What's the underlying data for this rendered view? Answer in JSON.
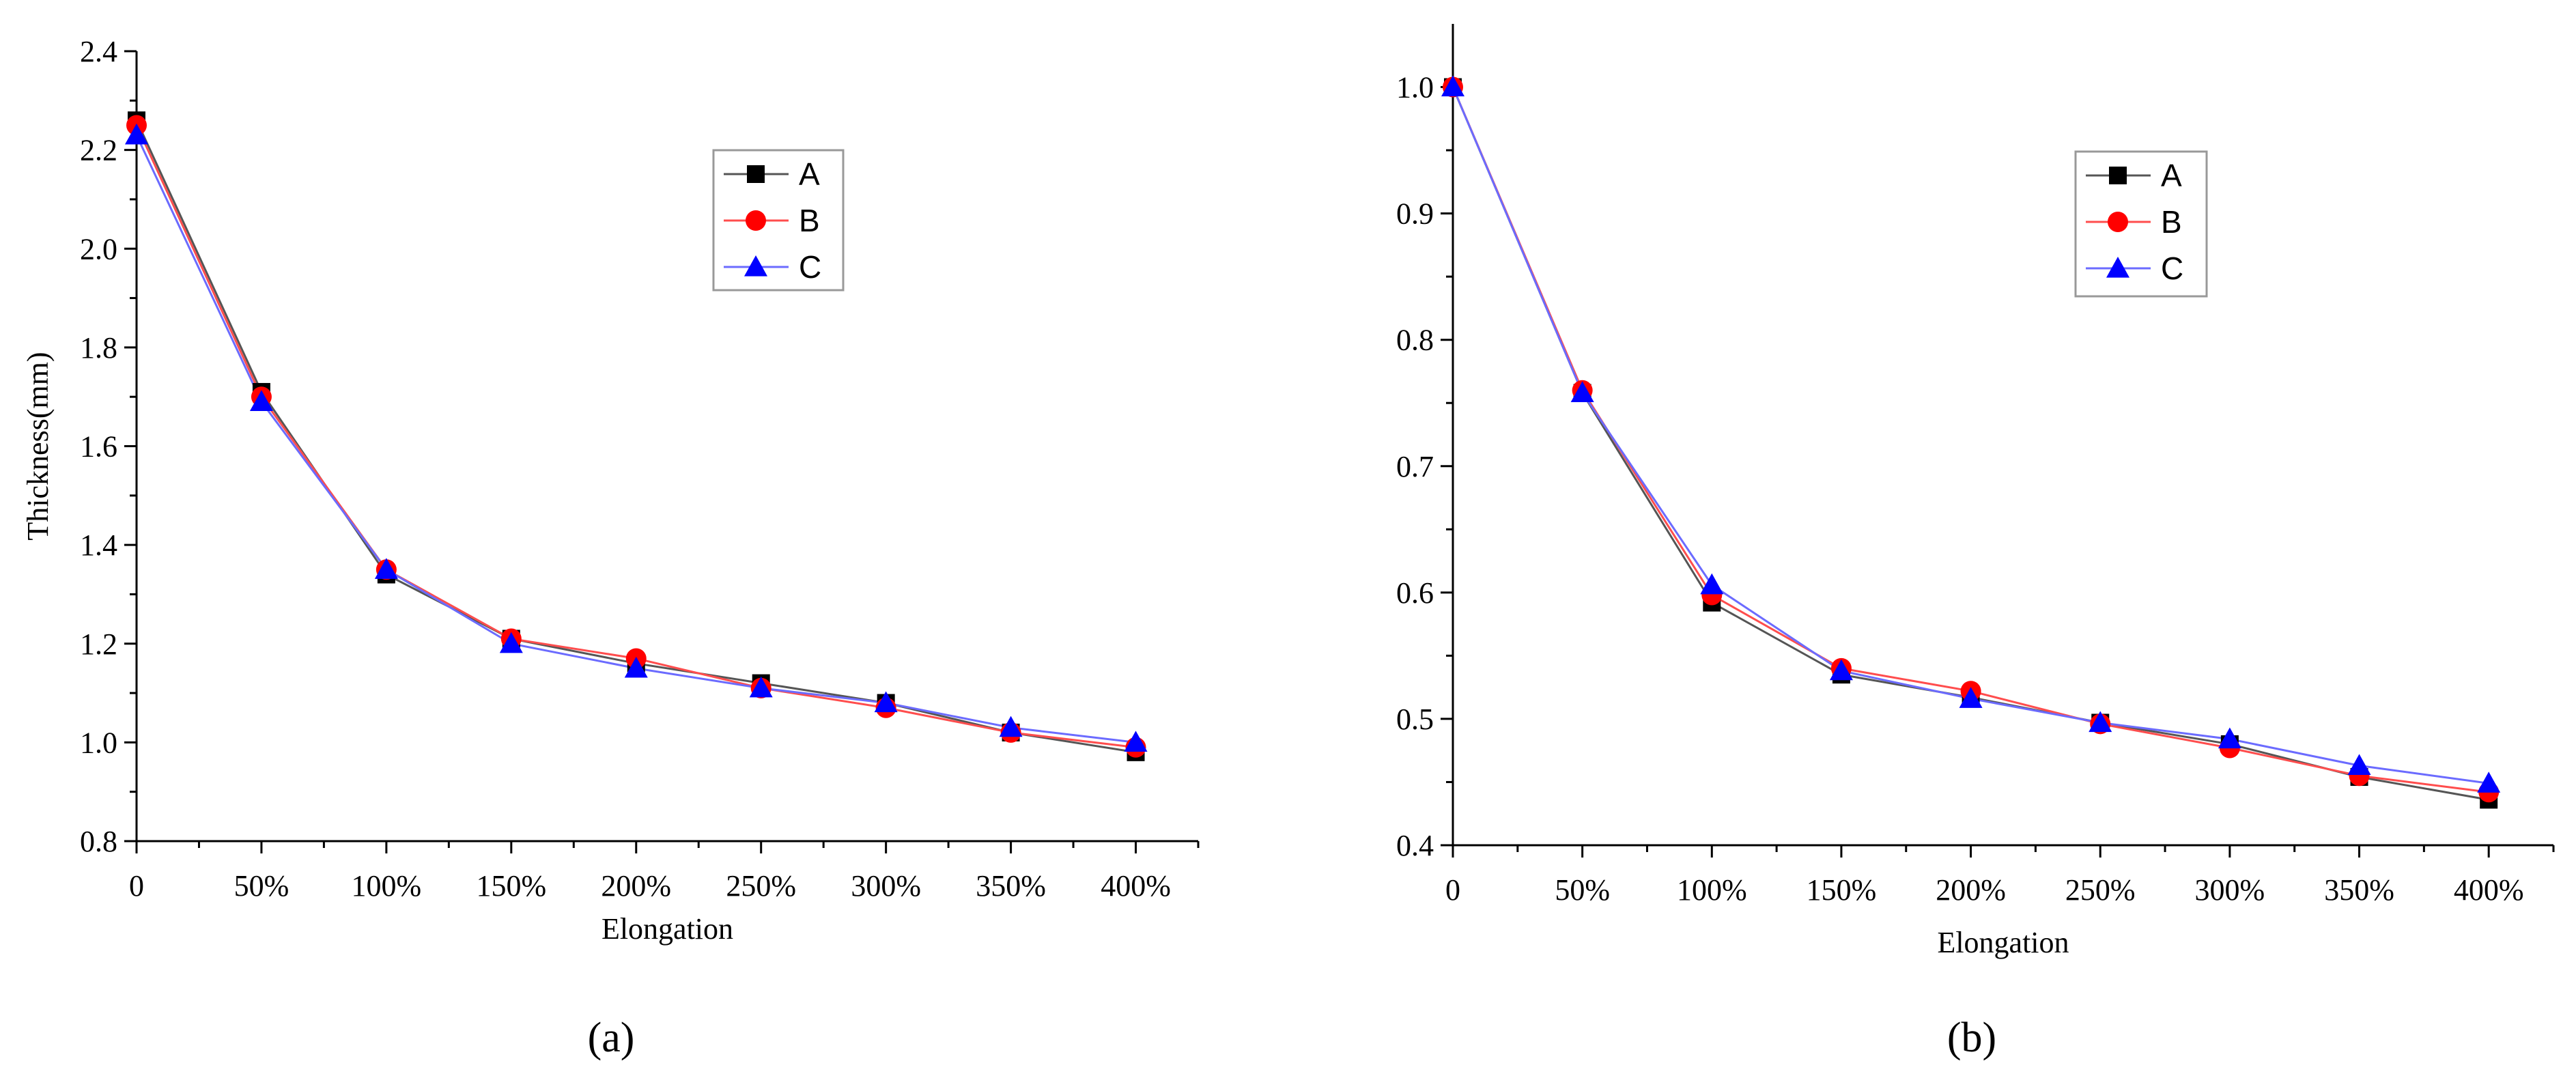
{
  "chart_data": [
    {
      "type": "line",
      "panel_label": "(a)",
      "title": "",
      "xlabel": "Elongation",
      "ylabel": "Thickness(mm)",
      "categories": [
        "0",
        "50%",
        "100%",
        "150%",
        "200%",
        "250%",
        "300%",
        "350%",
        "400%"
      ],
      "x": [
        0,
        50,
        100,
        150,
        200,
        250,
        300,
        350,
        400
      ],
      "xlim": [
        0,
        425
      ],
      "ylim": [
        0.8,
        2.4
      ],
      "yticks": [
        0.8,
        1.0,
        1.2,
        1.4,
        1.6,
        1.8,
        2.0,
        2.2,
        2.4
      ],
      "ytick_labels": [
        "0.8",
        "1.0",
        "1.2",
        "1.4",
        "1.6",
        "1.8",
        "2.0",
        "2.2",
        "2.4"
      ],
      "grid": false,
      "legend_position": "top-center",
      "series": [
        {
          "name": "A",
          "marker": "square",
          "color": "#000000",
          "line_color": "#555555",
          "values": [
            2.26,
            1.71,
            1.34,
            1.21,
            1.16,
            1.12,
            1.08,
            1.02,
            0.98
          ]
        },
        {
          "name": "B",
          "marker": "circle",
          "color": "#ff0000",
          "line_color": "#ff4d4d",
          "values": [
            2.25,
            1.7,
            1.35,
            1.21,
            1.17,
            1.11,
            1.07,
            1.02,
            0.99
          ]
        },
        {
          "name": "C",
          "marker": "triangle",
          "color": "#0000ff",
          "line_color": "#6b6bff",
          "values": [
            2.23,
            1.69,
            1.35,
            1.2,
            1.15,
            1.11,
            1.08,
            1.03,
            1.0
          ]
        }
      ]
    },
    {
      "type": "line",
      "panel_label": "(b)",
      "title": "",
      "xlabel": "Elongation",
      "ylabel": "",
      "categories": [
        "0",
        "50%",
        "100%",
        "150%",
        "200%",
        "250%",
        "300%",
        "350%",
        "400%"
      ],
      "x": [
        0,
        50,
        100,
        150,
        200,
        250,
        300,
        350,
        400
      ],
      "xlim": [
        0,
        425
      ],
      "ylim": [
        0.4,
        1.05
      ],
      "yticks": [
        0.4,
        0.5,
        0.6,
        0.7,
        0.8,
        0.9,
        1.0
      ],
      "ytick_labels": [
        "0.4",
        "0.5",
        "0.6",
        "0.7",
        "0.8",
        "0.9",
        "1.0"
      ],
      "grid": false,
      "legend_position": "top-center",
      "series": [
        {
          "name": "A",
          "marker": "square",
          "color": "#000000",
          "line_color": "#555555",
          "values": [
            1.0,
            0.758,
            0.592,
            0.535,
            0.517,
            0.497,
            0.48,
            0.454,
            0.436
          ]
        },
        {
          "name": "B",
          "marker": "circle",
          "color": "#ff0000",
          "line_color": "#ff4d4d",
          "values": [
            1.0,
            0.76,
            0.598,
            0.54,
            0.522,
            0.496,
            0.477,
            0.455,
            0.442
          ]
        },
        {
          "name": "C",
          "marker": "triangle",
          "color": "#0000ff",
          "line_color": "#6b6bff",
          "values": [
            1.0,
            0.758,
            0.606,
            0.538,
            0.516,
            0.497,
            0.484,
            0.463,
            0.449
          ]
        }
      ]
    }
  ]
}
